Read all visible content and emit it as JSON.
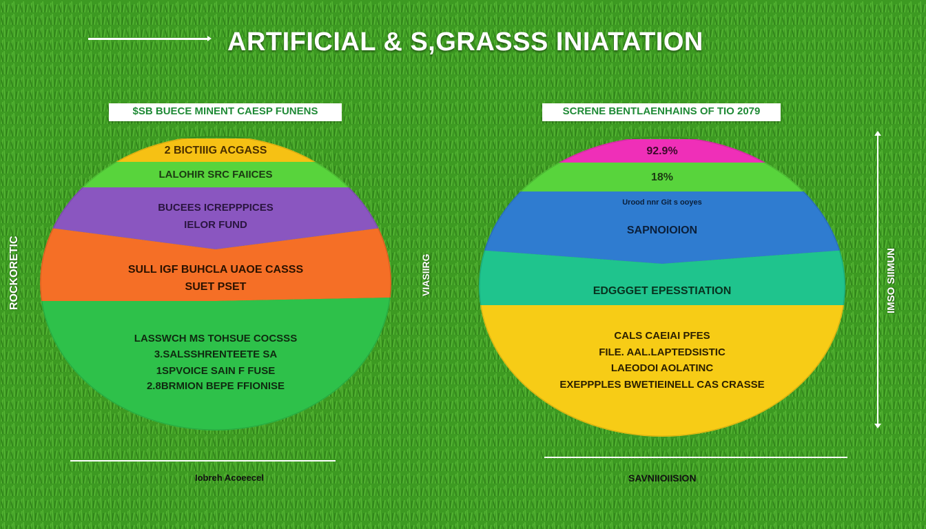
{
  "title": "ARTIFICIAL & S,GRASSS INIATATION",
  "left_panel": {
    "header": "$SB BUECE MINENT CAESP FUNENS",
    "side_label": "ROCKORETIC",
    "bottom_label": "Iobreh Acoeecel",
    "bands": [
      {
        "lines": [
          "2 BICTIIIG ACGASS"
        ],
        "color": "#f6c114",
        "text_color": "#4a2f00"
      },
      {
        "lines": [
          "LALOHIR SRC FAIICES"
        ],
        "color": "#58d43c",
        "text_color": "#1b3a12"
      },
      {
        "lines": [
          "BUCEES ICREPPPICES",
          "IELOR FUND"
        ],
        "color": "#8a56c0",
        "text_color": "#2a1540"
      },
      {
        "lines": [
          "SULL IGF BUHCLA UAOE CASSS",
          "SUET PSET"
        ],
        "color": "#f56f26",
        "text_color": "#2a1200"
      },
      {
        "lines": [
          "LASSWCH MS TOHSUE COCSSS",
          "3.SALSSHRENTEETE SA",
          "1SPVOICE SAIN F FUSE",
          "2.8BRMION BEPE FFIONISE"
        ],
        "color": "#2ec14a",
        "text_color": "#0f2a10"
      }
    ]
  },
  "middle_side_label": "VIASIIRG",
  "right_panel": {
    "header": "SCRENE BENTLAENHAINS OF TIO 2079",
    "side_label": "IMSO SIIMUN",
    "bottom_label": "SAVNIIOIISION",
    "bands": [
      {
        "lines": [
          "92.9%"
        ],
        "color": "#ef2fb8",
        "text_color": "#3a0a2a"
      },
      {
        "lines": [
          "18%"
        ],
        "color": "#58d43c",
        "text_color": "#1b3a12"
      },
      {
        "lines": [
          "Urood nnr Git s ooyes",
          "SAPNOIOION"
        ],
        "color": "#2f7cd0",
        "text_color": "#0b1f3a"
      },
      {
        "lines": [
          "EDGGGET EPESSTIATION"
        ],
        "color": "#1fc48d",
        "text_color": "#08321f"
      },
      {
        "lines": [
          "CALS CAEIAI PFES",
          "FILE. AAL.LAPTEDSISTIC",
          "LAEODOI AOLATINC",
          "EXEPPPLES BWETIEINELL CAS CRASSE"
        ],
        "color": "#f7cc16",
        "text_color": "#2c2000"
      }
    ]
  }
}
